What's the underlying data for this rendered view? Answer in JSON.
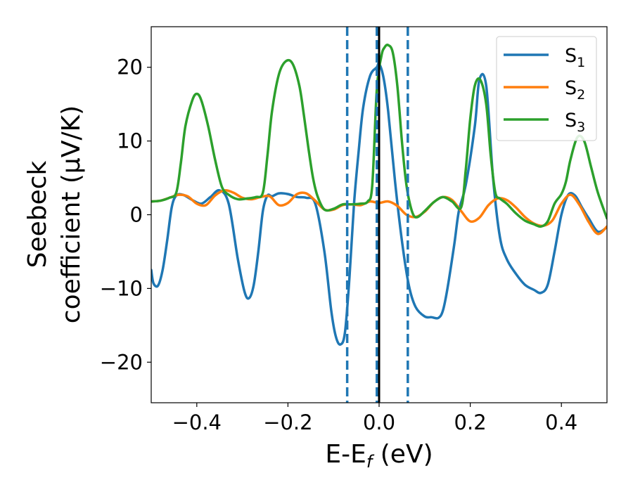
{
  "chart_data": {
    "type": "line",
    "xlabel": {
      "main": "E-E",
      "sub": "f",
      "unit": " (eV)"
    },
    "ylabel": {
      "line1": "Seebeck",
      "line2": "coefficient  (μV/K)"
    },
    "xlim": [
      -0.5,
      0.5
    ],
    "ylim": [
      -25.5,
      25.5
    ],
    "xticks": [
      -0.4,
      -0.2,
      0.0,
      0.2,
      0.4
    ],
    "xtick_labels": [
      "−0.4",
      "−0.2",
      "0.0",
      "0.2",
      "0.4"
    ],
    "yticks": [
      -20,
      -10,
      0,
      10,
      20
    ],
    "ytick_labels": [
      "−20",
      "−10",
      "0",
      "10",
      "20"
    ],
    "grid": false,
    "legend_position": "top-right",
    "vertical_lines": [
      {
        "x": -0.07,
        "style": "dashed",
        "color": "#1f77b4"
      },
      {
        "x": -0.005,
        "style": "dashed",
        "color": "#1f77b4"
      },
      {
        "x": 0.063,
        "style": "dashed",
        "color": "#1f77b4"
      },
      {
        "x": 0.0,
        "style": "solid",
        "color": "#000000"
      }
    ],
    "series": [
      {
        "name": "S",
        "sub": "1",
        "color": "#1f77b4",
        "x": [
          -0.5,
          -0.495,
          -0.485,
          -0.475,
          -0.465,
          -0.455,
          -0.445,
          -0.43,
          -0.41,
          -0.39,
          -0.37,
          -0.35,
          -0.33,
          -0.31,
          -0.295,
          -0.285,
          -0.275,
          -0.265,
          -0.255,
          -0.245,
          -0.235,
          -0.22,
          -0.2,
          -0.18,
          -0.16,
          -0.14,
          -0.12,
          -0.105,
          -0.095,
          -0.085,
          -0.075,
          -0.065,
          -0.055,
          -0.045,
          -0.035,
          -0.02,
          -0.005,
          0.0,
          0.01,
          0.02,
          0.035,
          0.05,
          0.065,
          0.08,
          0.1,
          0.115,
          0.13,
          0.14,
          0.15,
          0.165,
          0.175,
          0.19,
          0.21,
          0.22,
          0.235,
          0.25,
          0.265,
          0.28,
          0.3,
          0.32,
          0.34,
          0.355,
          0.37,
          0.385,
          0.4,
          0.415,
          0.43,
          0.445,
          0.46,
          0.48,
          0.5
        ],
        "y": [
          -7.5,
          -9.3,
          -9.6,
          -7.5,
          -3.5,
          1.0,
          2.6,
          2.7,
          2.0,
          1.5,
          2.4,
          3.3,
          1.5,
          -6.0,
          -10.5,
          -11.3,
          -9.5,
          -5.0,
          0.5,
          2.6,
          2.5,
          2.9,
          2.8,
          2.4,
          2.3,
          1.5,
          -5.0,
          -13.0,
          -16.5,
          -17.6,
          -16.0,
          -8.5,
          1.5,
          8.5,
          14.5,
          18.8,
          20.0,
          20.5,
          18.5,
          14.0,
          4.5,
          -3.5,
          -9.5,
          -12.5,
          -13.8,
          -13.9,
          -14.0,
          -13.0,
          -10.0,
          -4.0,
          0.5,
          4.0,
          12.0,
          18.3,
          17.5,
          5.0,
          -3.0,
          -6.0,
          -8.0,
          -9.5,
          -10.2,
          -10.6,
          -9.5,
          -5.0,
          0.0,
          2.7,
          2.6,
          1.0,
          -0.5,
          -2.3,
          -1.7
        ]
      },
      {
        "name": "S",
        "sub": "2",
        "color": "#ff7f0e",
        "x": [
          -0.5,
          -0.48,
          -0.46,
          -0.44,
          -0.42,
          -0.4,
          -0.38,
          -0.36,
          -0.34,
          -0.32,
          -0.3,
          -0.28,
          -0.26,
          -0.24,
          -0.22,
          -0.2,
          -0.18,
          -0.16,
          -0.14,
          -0.12,
          -0.1,
          -0.08,
          -0.06,
          -0.04,
          -0.02,
          0.0,
          0.02,
          0.04,
          0.06,
          0.08,
          0.1,
          0.12,
          0.14,
          0.16,
          0.18,
          0.2,
          0.22,
          0.24,
          0.26,
          0.28,
          0.3,
          0.32,
          0.34,
          0.36,
          0.38,
          0.4,
          0.42,
          0.44,
          0.46,
          0.48,
          0.5
        ],
        "y": [
          1.8,
          1.9,
          2.3,
          2.7,
          2.5,
          1.5,
          1.3,
          2.6,
          3.3,
          3.0,
          2.3,
          2.1,
          2.4,
          2.5,
          1.3,
          1.6,
          2.8,
          2.9,
          1.9,
          0.7,
          0.7,
          1.3,
          1.4,
          1.3,
          1.8,
          1.6,
          1.8,
          1.2,
          0.0,
          -0.3,
          0.4,
          1.7,
          2.4,
          2.0,
          0.5,
          -0.9,
          -0.4,
          1.3,
          2.2,
          2.0,
          1.0,
          -0.3,
          -1.2,
          -1.5,
          -0.8,
          1.5,
          2.7,
          1.3,
          -1.0,
          -2.6,
          -1.6
        ]
      },
      {
        "name": "S",
        "sub": "3",
        "color": "#2ca02c",
        "x": [
          -0.5,
          -0.48,
          -0.46,
          -0.445,
          -0.435,
          -0.425,
          -0.41,
          -0.4,
          -0.39,
          -0.375,
          -0.36,
          -0.345,
          -0.33,
          -0.31,
          -0.29,
          -0.27,
          -0.255,
          -0.245,
          -0.235,
          -0.22,
          -0.205,
          -0.19,
          -0.175,
          -0.165,
          -0.155,
          -0.145,
          -0.135,
          -0.12,
          -0.1,
          -0.08,
          -0.06,
          -0.04,
          -0.025,
          -0.015,
          -0.005,
          0.005,
          0.012,
          0.02,
          0.03,
          0.04,
          0.05,
          0.058,
          0.065,
          0.075,
          0.085,
          0.1,
          0.12,
          0.14,
          0.16,
          0.18,
          0.19,
          0.2,
          0.21,
          0.222,
          0.235,
          0.245,
          0.255,
          0.265,
          0.28,
          0.3,
          0.32,
          0.34,
          0.355,
          0.37,
          0.385,
          0.4,
          0.41,
          0.42,
          0.435,
          0.45,
          0.465,
          0.48,
          0.5
        ],
        "y": [
          1.8,
          1.9,
          2.3,
          3.0,
          7.0,
          12.0,
          15.5,
          16.4,
          15.5,
          12.0,
          7.5,
          3.8,
          2.7,
          2.1,
          2.2,
          2.4,
          3.0,
          8.0,
          14.0,
          19.0,
          20.8,
          20.5,
          17.5,
          13.5,
          9.0,
          5.0,
          2.5,
          0.7,
          0.8,
          1.4,
          1.4,
          1.5,
          1.8,
          4.0,
          17.0,
          21.5,
          22.7,
          23.0,
          22.0,
          17.5,
          10.0,
          5.0,
          2.2,
          0.0,
          -0.3,
          0.5,
          1.7,
          2.4,
          1.8,
          1.0,
          6.0,
          13.0,
          17.5,
          18.3,
          15.0,
          8.0,
          3.0,
          2.2,
          1.5,
          0.2,
          -0.8,
          -1.3,
          -1.6,
          -0.9,
          1.5,
          2.8,
          4.5,
          7.5,
          10.5,
          10.0,
          6.5,
          3.0,
          -0.5
        ]
      }
    ]
  }
}
